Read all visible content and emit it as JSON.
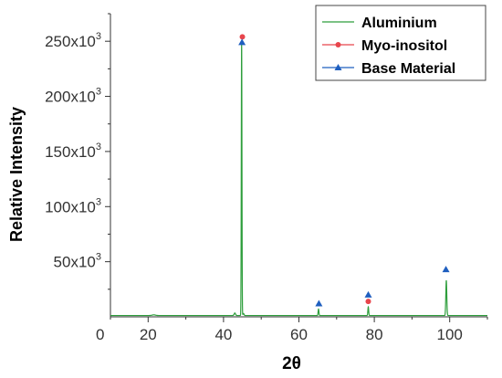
{
  "chart_data": {
    "type": "line",
    "title": "",
    "xlabel": "2θ",
    "ylabel": "Relative Intensity",
    "xlim": [
      10,
      110
    ],
    "ylim": [
      0,
      275000
    ],
    "xticks": [
      20,
      40,
      60,
      80,
      100
    ],
    "yticks": [
      {
        "value": 50000,
        "label_base": "50x10",
        "label_exp": "3"
      },
      {
        "value": 100000,
        "label_base": "100x10",
        "label_exp": "3"
      },
      {
        "value": 150000,
        "label_base": "150x10",
        "label_exp": "3"
      },
      {
        "value": 200000,
        "label_base": "200x10",
        "label_exp": "3"
      },
      {
        "value": 250000,
        "label_base": "250x10",
        "label_exp": "3"
      }
    ],
    "origin_label": "0",
    "legend_position": "top-right",
    "series": [
      {
        "name": "Aluminium",
        "color": "#2e9e3c",
        "baseline": 1200,
        "peaks": [
          {
            "x": 21.5,
            "y": 1800,
            "width": 0.6
          },
          {
            "x": 43.0,
            "y": 3500,
            "width": 0.25
          },
          {
            "x": 44.8,
            "y": 249000,
            "width": 0.12
          },
          {
            "x": 45.3,
            "y": 3000,
            "width": 0.2
          },
          {
            "x": 65.2,
            "y": 7000,
            "width": 0.15
          },
          {
            "x": 78.4,
            "y": 9000,
            "width": 0.15
          },
          {
            "x": 99.1,
            "y": 33000,
            "width": 0.18
          }
        ]
      },
      {
        "name": "Myo-inositol",
        "color": "#e8454c",
        "marker": "circle",
        "x": [
          45.0,
          78.4
        ],
        "y": [
          254000,
          14000
        ]
      },
      {
        "name": "Base Material",
        "color": "#1f5fbf",
        "marker": "triangle",
        "x": [
          44.9,
          65.3,
          78.4,
          99.0
        ],
        "y": [
          249000,
          12000,
          20000,
          43000
        ]
      }
    ]
  }
}
